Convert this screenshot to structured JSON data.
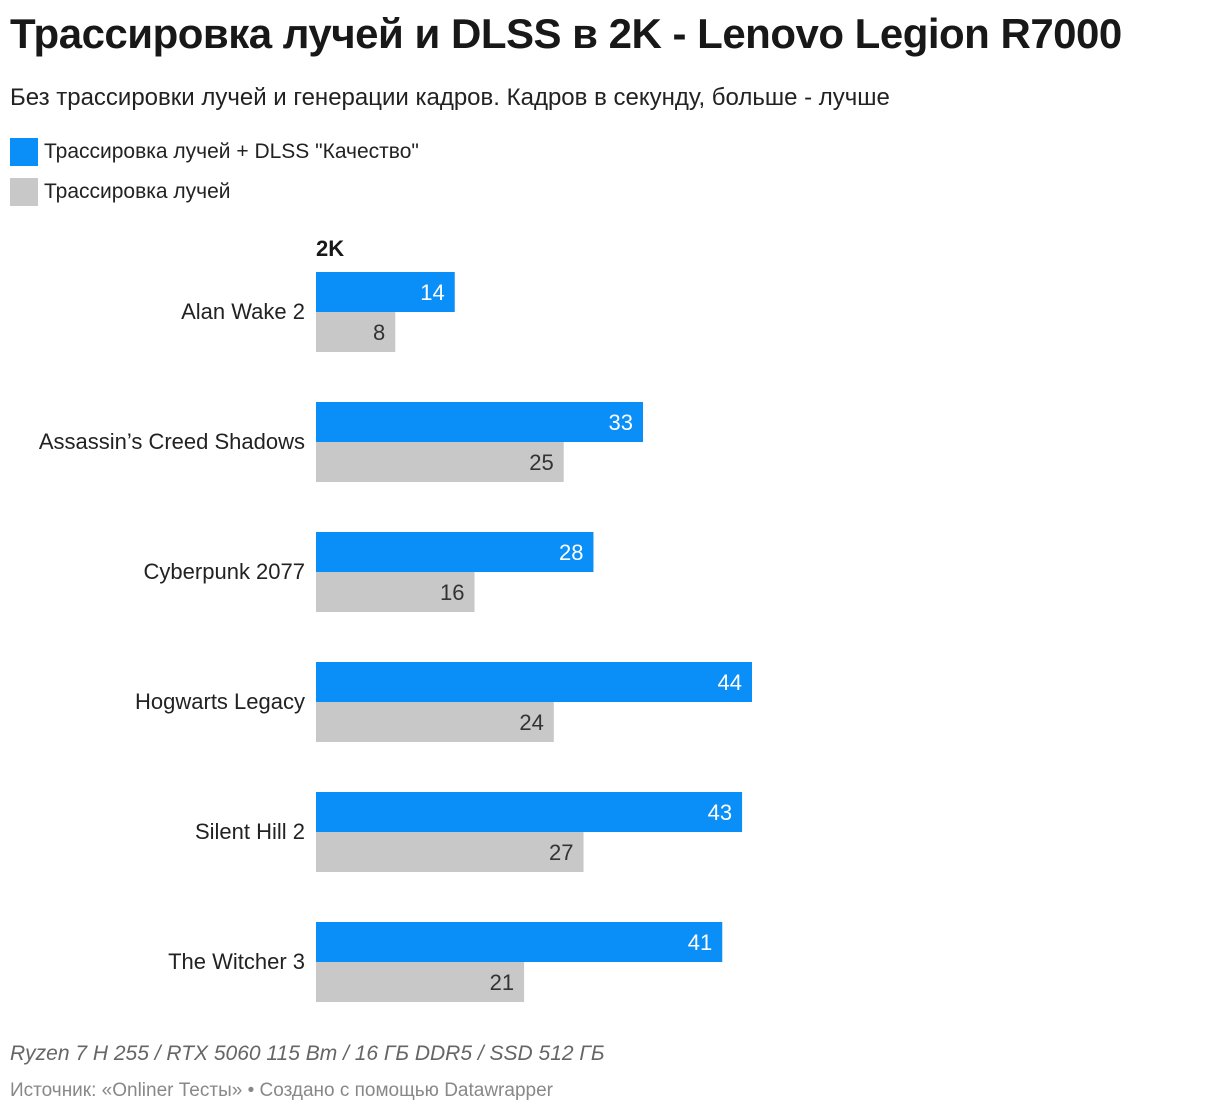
{
  "title": "Трассировка лучей и DLSS в 2K - Lenovo Legion R7000",
  "subtitle": "Без трассировки лучей и генерации кадров. Кадров в секунду, больше - лучше",
  "legend": [
    {
      "label": "Трассировка лучей + DLSS \"Качество\"",
      "color": "#0a8ef7"
    },
    {
      "label": "Трассировка лучей",
      "color": "#c8c8c8"
    }
  ],
  "chart_data": {
    "type": "bar",
    "orientation": "horizontal",
    "column_header": "2K",
    "categories": [
      "Alan Wake 2",
      "Assassin’s Creed Shadows",
      "Cyberpunk 2077",
      "Hogwarts Legacy",
      "Silent Hill 2",
      "The Witcher 3"
    ],
    "series": [
      {
        "name": "Трассировка лучей + DLSS \"Качество\"",
        "color": "#0a8ef7",
        "label_color": "#ffffff",
        "values": [
          14,
          33,
          28,
          44,
          43,
          41
        ]
      },
      {
        "name": "Трассировка лучей",
        "color": "#c8c8c8",
        "label_color": "#333333",
        "values": [
          8,
          25,
          16,
          24,
          27,
          21
        ]
      }
    ],
    "xlim": [
      0,
      44
    ],
    "grid": false
  },
  "footer": {
    "note": "Ryzen 7 H 255 / RTX 5060 115 Вт / 16 ГБ DDR5 / SSD 512 ГБ",
    "source": "Источник: «Onliner Тесты» • Создано с помощью Datawrapper"
  }
}
